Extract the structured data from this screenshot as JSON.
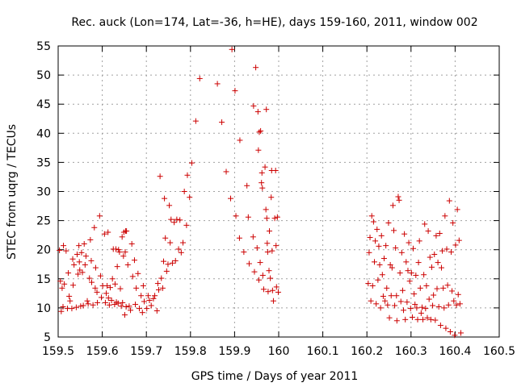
{
  "chart_data": {
    "type": "scatter",
    "title": "Rec. auck (Lon=174, Lat=-36, h=HE), days 159-160, 2011, window 002",
    "xlabel": "GPS time / Days of year 2011",
    "ylabel": "STEC from uqrg / TECUs",
    "xlim": [
      159.5,
      160.5
    ],
    "ylim": [
      5,
      55
    ],
    "xticks": [
      "159.5",
      "159.6",
      "159.7",
      "159.8",
      "159.9",
      "160",
      "160.1",
      "160.2",
      "160.3",
      "160.4",
      "160.5"
    ],
    "yticks": [
      "5",
      "10",
      "15",
      "20",
      "25",
      "30",
      "35",
      "40",
      "45",
      "50",
      "55"
    ],
    "grid": true,
    "marker": "plus",
    "color": "#cc0000",
    "series": [
      {
        "points": [
          [
            159.503,
            19.9
          ],
          [
            159.505,
            14.6
          ],
          [
            159.507,
            9.4
          ],
          [
            159.509,
            13.4
          ],
          [
            159.511,
            10.2
          ],
          [
            159.512,
            20.7
          ],
          [
            159.514,
            14.1
          ],
          [
            159.518,
            19.8
          ],
          [
            159.521,
            9.9
          ],
          [
            159.523,
            16.0
          ],
          [
            159.525,
            12.0
          ],
          [
            159.527,
            11.2
          ],
          [
            159.531,
            9.9
          ],
          [
            159.533,
            18.4
          ],
          [
            159.534,
            13.9
          ],
          [
            159.536,
            17.4
          ],
          [
            159.541,
            10.1
          ],
          [
            159.543,
            19.2
          ],
          [
            159.545,
            15.8
          ],
          [
            159.547,
            20.7
          ],
          [
            159.548,
            17.9
          ],
          [
            159.549,
            16.5
          ],
          [
            159.551,
            10.3
          ],
          [
            159.553,
            19.5
          ],
          [
            159.555,
            16.1
          ],
          [
            159.557,
            10.4
          ],
          [
            159.559,
            21.0
          ],
          [
            159.561,
            17.4
          ],
          [
            159.563,
            18.9
          ],
          [
            159.566,
            11.2
          ],
          [
            159.568,
            10.7
          ],
          [
            159.571,
            15.1
          ],
          [
            159.573,
            21.7
          ],
          [
            159.575,
            18.1
          ],
          [
            159.576,
            14.4
          ],
          [
            159.579,
            10.5
          ],
          [
            159.582,
            23.8
          ],
          [
            159.584,
            13.4
          ],
          [
            159.585,
            16.9
          ],
          [
            159.588,
            12.7
          ],
          [
            159.589,
            10.9
          ],
          [
            159.594,
            25.8
          ],
          [
            159.596,
            15.5
          ],
          [
            159.598,
            11.8
          ],
          [
            159.601,
            13.8
          ],
          [
            159.605,
            22.7
          ],
          [
            159.607,
            10.9
          ],
          [
            159.609,
            12.5
          ],
          [
            159.611,
            13.8
          ],
          [
            159.613,
            23.0
          ],
          [
            159.614,
            11.7
          ],
          [
            159.616,
            10.5
          ],
          [
            159.618,
            13.5
          ],
          [
            159.621,
            11.3
          ],
          [
            159.623,
            15.0
          ],
          [
            159.625,
            20.1
          ],
          [
            159.628,
            10.6
          ],
          [
            159.629,
            14.1
          ],
          [
            159.631,
            20.1
          ],
          [
            159.632,
            11.0
          ],
          [
            159.634,
            17.1
          ],
          [
            159.636,
            10.8
          ],
          [
            159.637,
            20.0
          ],
          [
            159.639,
            19.6
          ],
          [
            159.641,
            13.3
          ],
          [
            159.643,
            10.3
          ],
          [
            159.645,
            22.2
          ],
          [
            159.646,
            10.9
          ],
          [
            159.648,
            18.9
          ],
          [
            159.649,
            23.0
          ],
          [
            159.651,
            8.8
          ],
          [
            159.652,
            19.6
          ],
          [
            159.653,
            23.2
          ],
          [
            159.654,
            10.2
          ],
          [
            159.655,
            23.2
          ],
          [
            159.658,
            17.4
          ],
          [
            159.661,
            10.3
          ],
          [
            159.664,
            9.6
          ],
          [
            159.667,
            21.0
          ],
          [
            159.669,
            15.4
          ],
          [
            159.673,
            18.2
          ],
          [
            159.675,
            10.6
          ],
          [
            159.677,
            13.4
          ],
          [
            159.681,
            15.9
          ],
          [
            159.684,
            9.9
          ],
          [
            159.688,
            12.1
          ],
          [
            159.691,
            9.2
          ],
          [
            159.693,
            13.8
          ],
          [
            159.695,
            11.1
          ],
          [
            159.701,
            9.9
          ],
          [
            159.704,
            12.1
          ],
          [
            159.707,
            11.3
          ],
          [
            159.711,
            10.4
          ],
          [
            159.716,
            11.6
          ],
          [
            159.719,
            12.1
          ],
          [
            159.724,
            9.5
          ],
          [
            159.726,
            14.2
          ],
          [
            159.728,
            13.1
          ],
          [
            159.731,
            32.6
          ],
          [
            159.734,
            15.1
          ],
          [
            159.737,
            13.4
          ],
          [
            159.739,
            18.0
          ],
          [
            159.741,
            28.8
          ],
          [
            159.743,
            22.0
          ],
          [
            159.746,
            16.3
          ],
          [
            159.749,
            17.5
          ],
          [
            159.752,
            27.6
          ],
          [
            159.754,
            21.2
          ],
          [
            159.756,
            25.2
          ],
          [
            159.759,
            17.7
          ],
          [
            159.763,
            24.7
          ],
          [
            159.766,
            18.1
          ],
          [
            159.769,
            25.2
          ],
          [
            159.773,
            20.1
          ],
          [
            159.776,
            25.1
          ],
          [
            159.779,
            19.5
          ],
          [
            159.783,
            21.2
          ],
          [
            159.786,
            30.0
          ],
          [
            159.791,
            24.2
          ],
          [
            159.793,
            32.8
          ],
          [
            159.798,
            29.0
          ],
          [
            159.803,
            34.9
          ],
          [
            159.812,
            42.1
          ],
          [
            159.821,
            49.4
          ],
          [
            159.861,
            48.5
          ],
          [
            159.871,
            41.9
          ],
          [
            159.881,
            33.4
          ],
          [
            159.891,
            28.8
          ],
          [
            159.894,
            54.4
          ],
          [
            159.901,
            47.3
          ],
          [
            159.903,
            25.8
          ],
          [
            159.911,
            22.0
          ],
          [
            159.912,
            38.8
          ],
          [
            159.921,
            19.6
          ],
          [
            159.928,
            31.0
          ],
          [
            159.931,
            25.6
          ],
          [
            159.933,
            17.6
          ],
          [
            159.942,
            22.2
          ],
          [
            159.943,
            44.7
          ],
          [
            159.945,
            16.2
          ],
          [
            159.948,
            51.3
          ],
          [
            159.951,
            20.3
          ],
          [
            159.953,
            43.7
          ],
          [
            159.954,
            37.1
          ],
          [
            159.955,
            14.8
          ],
          [
            159.956,
            40.2
          ],
          [
            159.958,
            17.8
          ],
          [
            159.959,
            40.4
          ],
          [
            159.961,
            31.5
          ],
          [
            159.962,
            33.2
          ],
          [
            159.963,
            30.6
          ],
          [
            159.964,
            15.6
          ],
          [
            159.966,
            13.2
          ],
          [
            159.969,
            34.2
          ],
          [
            159.971,
            26.9
          ],
          [
            159.972,
            44.1
          ],
          [
            159.973,
            25.4
          ],
          [
            159.974,
            21.1
          ],
          [
            159.975,
            19.6
          ],
          [
            159.976,
            12.8
          ],
          [
            159.978,
            16.4
          ],
          [
            159.979,
            23.2
          ],
          [
            159.981,
            15.1
          ],
          [
            159.983,
            29.0
          ],
          [
            159.984,
            33.6
          ],
          [
            159.985,
            19.8
          ],
          [
            159.986,
            13.0
          ],
          [
            159.988,
            11.2
          ],
          [
            159.991,
            25.4
          ],
          [
            159.993,
            33.6
          ],
          [
            159.994,
            20.7
          ],
          [
            159.995,
            13.6
          ],
          [
            159.997,
            25.6
          ],
          [
            159.999,
            12.7
          ]
        ]
      },
      {
        "points": [
          [
            160.203,
            14.2
          ],
          [
            160.205,
            19.5
          ],
          [
            160.207,
            22.1
          ],
          [
            160.209,
            11.2
          ],
          [
            160.211,
            25.8
          ],
          [
            160.213,
            13.8
          ],
          [
            160.215,
            24.8
          ],
          [
            160.217,
            17.9
          ],
          [
            160.219,
            21.5
          ],
          [
            160.221,
            10.7
          ],
          [
            160.223,
            23.5
          ],
          [
            160.225,
            14.8
          ],
          [
            160.227,
            20.6
          ],
          [
            160.229,
            17.4
          ],
          [
            160.231,
            10.0
          ],
          [
            160.233,
            22.4
          ],
          [
            160.235,
            15.7
          ],
          [
            160.237,
            12.0
          ],
          [
            160.239,
            18.5
          ],
          [
            160.241,
            11.2
          ],
          [
            160.243,
            20.7
          ],
          [
            160.245,
            13.4
          ],
          [
            160.247,
            10.5
          ],
          [
            160.249,
            24.6
          ],
          [
            160.251,
            8.3
          ],
          [
            160.253,
            17.4
          ],
          [
            160.255,
            12.1
          ],
          [
            160.257,
            16.9
          ],
          [
            160.259,
            27.6
          ],
          [
            160.261,
            23.3
          ],
          [
            160.263,
            10.4
          ],
          [
            160.265,
            20.3
          ],
          [
            160.267,
            12.1
          ],
          [
            160.268,
            7.8
          ],
          [
            160.271,
            29.1
          ],
          [
            160.273,
            28.5
          ],
          [
            160.275,
            16.0
          ],
          [
            160.277,
            11.1
          ],
          [
            160.279,
            19.5
          ],
          [
            160.281,
            13.0
          ],
          [
            160.283,
            9.6
          ],
          [
            160.285,
            22.7
          ],
          [
            160.287,
            8.0
          ],
          [
            160.289,
            17.9
          ],
          [
            160.291,
            11.0
          ],
          [
            160.293,
            16.4
          ],
          [
            160.295,
            21.2
          ],
          [
            160.297,
            14.6
          ],
          [
            160.299,
            9.9
          ],
          [
            160.301,
            16.0
          ],
          [
            160.303,
            8.4
          ],
          [
            160.305,
            20.2
          ],
          [
            160.307,
            12.4
          ],
          [
            160.309,
            10.6
          ],
          [
            160.311,
            15.6
          ],
          [
            160.313,
            10.0
          ],
          [
            160.315,
            8.0
          ],
          [
            160.317,
            17.8
          ],
          [
            160.319,
            21.5
          ],
          [
            160.321,
            13.4
          ],
          [
            160.323,
            9.1
          ],
          [
            160.325,
            10.1
          ],
          [
            160.327,
            8.0
          ],
          [
            160.329,
            15.7
          ],
          [
            160.331,
            24.4
          ],
          [
            160.333,
            9.9
          ],
          [
            160.335,
            13.8
          ],
          [
            160.337,
            8.3
          ],
          [
            160.339,
            23.2
          ],
          [
            160.341,
            11.5
          ],
          [
            160.343,
            18.7
          ],
          [
            160.345,
            8.0
          ],
          [
            160.347,
            17.0
          ],
          [
            160.349,
            10.4
          ],
          [
            160.351,
            12.2
          ],
          [
            160.353,
            19.2
          ],
          [
            160.355,
            7.9
          ],
          [
            160.357,
            22.4
          ],
          [
            160.359,
            13.3
          ],
          [
            160.361,
            17.8
          ],
          [
            160.363,
            10.2
          ],
          [
            160.365,
            22.8
          ],
          [
            160.367,
            7.0
          ],
          [
            160.369,
            16.9
          ],
          [
            160.371,
            19.8
          ],
          [
            160.373,
            13.4
          ],
          [
            160.375,
            10.0
          ],
          [
            160.377,
            25.8
          ],
          [
            160.379,
            6.5
          ],
          [
            160.381,
            20.1
          ],
          [
            160.383,
            13.9
          ],
          [
            160.385,
            10.5
          ],
          [
            160.387,
            28.4
          ],
          [
            160.389,
            5.9
          ],
          [
            160.391,
            19.6
          ],
          [
            160.393,
            12.9
          ],
          [
            160.395,
            24.6
          ],
          [
            160.397,
            11.2
          ],
          [
            160.399,
            5.3
          ],
          [
            160.401,
            20.8
          ],
          [
            160.403,
            10.5
          ],
          [
            160.405,
            26.9
          ],
          [
            160.407,
            12.3
          ],
          [
            160.409,
            21.6
          ],
          [
            160.411,
            10.7
          ],
          [
            160.413,
            5.7
          ]
        ]
      }
    ]
  }
}
